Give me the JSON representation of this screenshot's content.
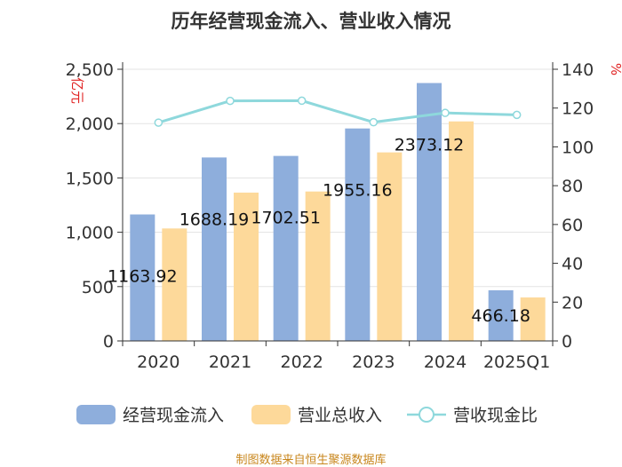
{
  "chart_data": {
    "type": "bar",
    "title": "历年经营现金流入、营业收入情况",
    "categories": [
      "2020",
      "2021",
      "2022",
      "2023",
      "2024",
      "2025Q1"
    ],
    "y_left": {
      "label": "亿元",
      "ticks": [
        "0",
        "500",
        "1,000",
        "1,500",
        "2,000",
        "2,500"
      ],
      "ylim": [
        0,
        2500
      ]
    },
    "y_right": {
      "label": "%",
      "ticks": [
        "0",
        "20",
        "40",
        "60",
        "80",
        "100",
        "120",
        "140"
      ],
      "ylim": [
        0,
        140
      ]
    },
    "series": [
      {
        "name": "经营现金流入",
        "type": "bar",
        "axis": "left",
        "color": "#8eaedc",
        "values": [
          1163.92,
          1688.19,
          1702.51,
          1955.16,
          2373.12,
          466.18
        ],
        "labels": [
          "1163.92",
          "1688.19",
          "1702.51",
          "1955.16",
          "2373.12",
          "466.18"
        ]
      },
      {
        "name": "营业总收入",
        "type": "bar",
        "axis": "left",
        "color": "#fdd99a",
        "values": [
          1035,
          1365,
          1375,
          1735,
          2020,
          400
        ]
      },
      {
        "name": "营收现金比",
        "type": "line",
        "axis": "right",
        "color": "#8ed8dc",
        "values": [
          112.5,
          123.7,
          123.8,
          112.7,
          117.5,
          116.5
        ]
      }
    ],
    "legend_position": "bottom",
    "source": "制图数据来自恒生聚源数据库"
  }
}
